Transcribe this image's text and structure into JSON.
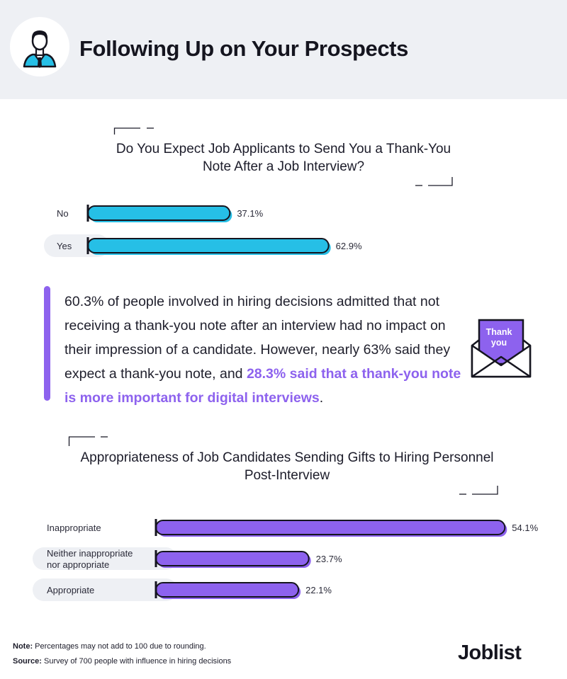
{
  "header": {
    "title": "Following Up on Your Prospects"
  },
  "chart_data": [
    {
      "type": "bar",
      "orientation": "horizontal",
      "title": "Do You Expect Job Applicants to Send You a Thank-You Note After a Job Interview?",
      "categories": [
        "No",
        "Yes"
      ],
      "values": [
        37.1,
        62.9
      ],
      "value_labels": [
        "37.1%",
        "62.9%"
      ],
      "color": "#26bfe6",
      "xlim": [
        0,
        100
      ]
    },
    {
      "type": "bar",
      "orientation": "horizontal",
      "title": "Appropriateness of Job Candidates Sending Gifts to Hiring Personnel Post-Interview",
      "categories": [
        "Inappropriate",
        "Neither inappropriate nor appropriate",
        "Appropriate"
      ],
      "category_lines": [
        [
          "Inappropriate"
        ],
        [
          "Neither inappropriate",
          "nor appropriate"
        ],
        [
          "Appropriate"
        ]
      ],
      "values": [
        54.1,
        23.7,
        22.1
      ],
      "value_labels": [
        "54.1%",
        "23.7%",
        "22.1%"
      ],
      "color": "#8d62ee",
      "xlim": [
        0,
        100
      ]
    }
  ],
  "callout": {
    "text_plain": "60.3% of people involved in hiring decisions admitted that not receiving a thank-you note after an interview had no impact on their impression of a candidate. However, nearly 63% said they expect a thank-you note, and ",
    "text_highlight": "28.3% said that a thank-you note is more important for digital interviews",
    "text_end": ".",
    "highlight_color": "#8d62ee",
    "envelope_note": "Thank you"
  },
  "footer": {
    "note_label": "Note:",
    "note_text": " Percentages may not add to 100 due to rounding.",
    "source_label": "Source:",
    "source_text": " Survey of 700 people with influence in hiring decisions",
    "brand": "Joblist"
  }
}
